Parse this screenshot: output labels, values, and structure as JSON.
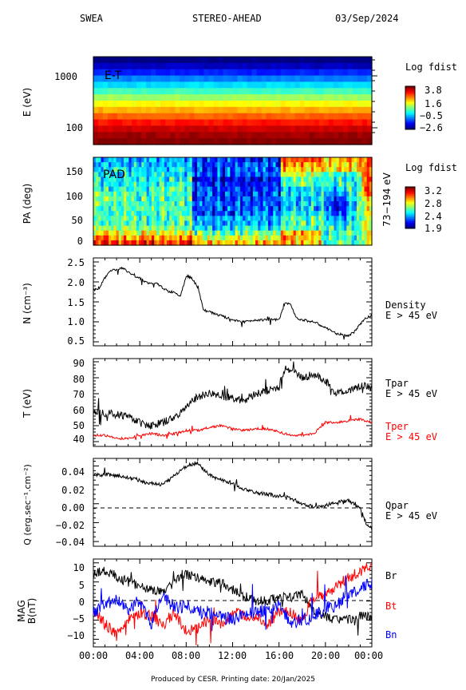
{
  "header": {
    "instrument": "SWEA",
    "spacecraft": "STEREO-AHEAD",
    "date": "03/Sep/2024"
  },
  "footer": {
    "text": "Produced by CESR.   Printing date: 20/Jan/2025"
  },
  "x_ticks": [
    "00:00",
    "04:00",
    "08:00",
    "12:00",
    "16:00",
    "20:00",
    "00:00"
  ],
  "colors": {
    "black": "#000000",
    "red": "#ff0000",
    "blue": "#0000ff"
  },
  "panels": {
    "et": {
      "label": "E-T",
      "ylabel": "E (eV)",
      "yticks": [
        "1000",
        "100"
      ],
      "colorbar": {
        "title": "Log fdist",
        "ticks": [
          "3.8",
          "1.6",
          "−0.5",
          "−2.6"
        ],
        "range": [
          -2.6,
          3.8
        ]
      }
    },
    "pad": {
      "label": "PAD",
      "ylabel": "PA (deg)",
      "yticks": [
        "150",
        "100",
        "50",
        "0"
      ],
      "side_label": "73−194 eV",
      "colorbar": {
        "title": "Log fdist",
        "ticks": [
          "3.2",
          "2.8",
          "2.4",
          "1.9"
        ],
        "range": [
          1.9,
          3.2
        ]
      }
    },
    "density": {
      "ylabel": "N (cm⁻³)",
      "yticks": [
        "2.5",
        "2.0",
        "1.5",
        "1.0",
        "0.5"
      ],
      "legend": [
        "Density",
        "E > 45 eV"
      ]
    },
    "temp": {
      "ylabel": "T (eV)",
      "yticks": [
        "90",
        "80",
        "70",
        "60",
        "50",
        "40"
      ],
      "legend_par": [
        "Tpar",
        "E > 45 eV"
      ],
      "legend_per": [
        "Tper",
        "E > 45 eV"
      ]
    },
    "heat": {
      "ylabel": "Q (erg.sec⁻¹.cm⁻²)",
      "yticks": [
        "0.04",
        "0.02",
        "0.00",
        "−0.02",
        "−0.04"
      ],
      "legend": [
        "Qpar",
        "E > 45 eV"
      ]
    },
    "mag": {
      "ylabel": "MAG",
      "ylabel2": "B(nT)",
      "yticks": [
        "10",
        "5",
        "0",
        "−5",
        "−10"
      ],
      "legend": [
        "Br",
        "Bt",
        "Bn"
      ]
    }
  },
  "chart_data": [
    {
      "type": "heatmap",
      "title": "E-T",
      "ylabel": "E (eV)",
      "yscale": "log",
      "xlim_hours": [
        0,
        24
      ],
      "note_rows_high_to_low_energy_logf": [
        -2.6,
        -2.2,
        -1.6,
        -1.0,
        -0.4,
        0.2,
        0.8,
        1.4,
        1.9,
        2.4,
        2.9,
        3.3,
        3.6,
        3.8
      ]
    },
    {
      "type": "heatmap",
      "title": "PAD",
      "ylabel": "PA (deg)",
      "ylim": [
        0,
        180
      ],
      "xlim_hours": [
        0,
        24
      ]
    },
    {
      "type": "line",
      "ylabel": "N (cm⁻³)",
      "ylim": [
        0.4,
        2.6
      ],
      "xlim": [
        0,
        24
      ],
      "series": [
        {
          "name": "Density",
          "x": [
            0,
            0.5,
            1,
            1.5,
            2,
            2.5,
            3,
            3.5,
            4,
            4.5,
            5,
            5.5,
            6,
            6.5,
            7,
            7.5,
            8,
            8.5,
            9,
            9.5,
            10,
            10.5,
            11,
            12,
            13,
            14,
            15,
            16,
            16.5,
            17,
            17.5,
            18,
            19,
            20,
            21,
            22,
            22.5,
            23,
            23.5,
            24
          ],
          "y": [
            1.8,
            1.85,
            2.1,
            2.3,
            2.3,
            2.35,
            2.25,
            2.15,
            2.1,
            2.0,
            1.95,
            1.95,
            1.85,
            1.75,
            1.75,
            1.65,
            2.15,
            2.1,
            1.85,
            1.3,
            1.25,
            1.2,
            1.15,
            1.05,
            1.0,
            1.05,
            1.05,
            1.05,
            1.45,
            1.45,
            1.1,
            1.05,
            1.0,
            0.85,
            0.7,
            0.65,
            0.75,
            0.95,
            1.1,
            1.15
          ]
        }
      ]
    },
    {
      "type": "line",
      "ylabel": "T (eV)",
      "ylim": [
        37,
        92
      ],
      "xlim": [
        0,
        24
      ],
      "series": [
        {
          "name": "Tpar",
          "x": [
            0,
            1,
            2,
            3,
            4,
            5,
            6,
            7,
            8,
            9,
            10,
            11,
            12,
            13,
            14,
            15,
            16,
            16.5,
            17,
            18,
            19,
            20,
            21,
            22,
            23,
            24
          ],
          "y": [
            60,
            58,
            57,
            56,
            52,
            50,
            52,
            55,
            62,
            68,
            70,
            69,
            67,
            66,
            70,
            72,
            74,
            86,
            85,
            80,
            82,
            78,
            70,
            72,
            75,
            74
          ]
        },
        {
          "name": "Tper",
          "x": [
            0,
            1,
            2,
            3,
            4,
            5,
            6,
            7,
            8,
            9,
            10,
            11,
            12,
            13,
            14,
            15,
            16,
            17,
            18,
            19,
            20,
            21,
            22,
            23,
            24
          ],
          "y": [
            44,
            44,
            42,
            42,
            44,
            45,
            44,
            45,
            47,
            47,
            49,
            50,
            48,
            47,
            48,
            48,
            46,
            44,
            44,
            45,
            52,
            52,
            53,
            54,
            52
          ]
        }
      ]
    },
    {
      "type": "line",
      "ylabel": "Q (erg.sec⁻¹.cm⁻²)",
      "ylim": [
        -0.045,
        0.048
      ],
      "xlim": [
        0,
        24
      ],
      "series": [
        {
          "name": "Qpar",
          "x": [
            0,
            1,
            2,
            3,
            4,
            4.5,
            5,
            6,
            7,
            8,
            9,
            10,
            11,
            12,
            13,
            14,
            15,
            16,
            17,
            18,
            19,
            20,
            21,
            22,
            23,
            23.5,
            24
          ],
          "y": [
            0.03,
            0.031,
            0.03,
            0.028,
            0.025,
            0.022,
            0.022,
            0.02,
            0.03,
            0.04,
            0.043,
            0.03,
            0.025,
            0.022,
            0.015,
            0.012,
            0.01,
            0.008,
            0.006,
            0.0,
            -0.003,
            -0.002,
            0.002,
            0.003,
            -0.005,
            -0.02,
            -0.027
          ]
        }
      ]
    },
    {
      "type": "line",
      "ylabel": "B(nT)",
      "ylim": [
        -12,
        11
      ],
      "xlim": [
        0,
        24
      ],
      "series": [
        {
          "name": "Br",
          "x": [
            0,
            1,
            2,
            3,
            4,
            5,
            6,
            7,
            8,
            9,
            10,
            11,
            12,
            13,
            14,
            15,
            16,
            17,
            18,
            19,
            20,
            21,
            22,
            23,
            24
          ],
          "y": [
            7,
            8,
            6,
            5,
            4,
            3,
            2,
            5,
            7,
            6,
            5,
            5,
            3,
            1,
            0,
            0,
            1,
            1,
            2,
            -3,
            -4,
            -5,
            -5,
            -4,
            -4
          ]
        },
        {
          "name": "Bt",
          "x": [
            0,
            1,
            2,
            3,
            4,
            5,
            6,
            7,
            8,
            9,
            10,
            11,
            12,
            13,
            14,
            15,
            16,
            17,
            18,
            19,
            20,
            21,
            22,
            23,
            24
          ],
          "y": [
            -2,
            -6,
            -9,
            -5,
            -3,
            -4,
            -6,
            -3,
            -8,
            -7,
            -5,
            -6,
            -3,
            -4,
            -4,
            -6,
            -3,
            -3,
            -5,
            1,
            2,
            4,
            6,
            8,
            9
          ]
        },
        {
          "name": "Bn",
          "x": [
            0,
            1,
            2,
            3,
            4,
            5,
            6,
            7,
            8,
            9,
            10,
            11,
            12,
            13,
            14,
            15,
            16,
            17,
            18,
            19,
            20,
            21,
            22,
            23,
            24
          ],
          "y": [
            -3,
            -1,
            0,
            -2,
            0,
            -6,
            2,
            -2,
            -1,
            -3,
            -3,
            -4,
            -5,
            -3,
            -3,
            -2,
            -1,
            -6,
            -5,
            -4,
            -2,
            -1,
            2,
            3,
            5
          ]
        }
      ]
    }
  ]
}
